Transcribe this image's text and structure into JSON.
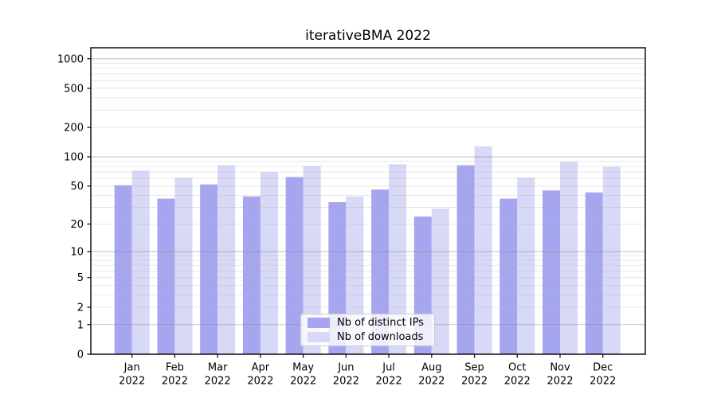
{
  "chart_data": {
    "type": "bar",
    "title": "iterativeBMA 2022",
    "x_axis": {
      "categories": [
        "Jan",
        "Feb",
        "Mar",
        "Apr",
        "May",
        "Jun",
        "Jul",
        "Aug",
        "Sep",
        "Oct",
        "Nov",
        "Dec"
      ],
      "year_label": "2022"
    },
    "y_axis": {
      "scale": "log10(1+x)",
      "ticks": [
        0,
        1,
        2,
        5,
        10,
        20,
        50,
        100,
        200,
        500,
        1000
      ],
      "range": [
        0,
        1300
      ],
      "minor_grid_multiples": [
        2,
        3,
        4,
        5,
        6,
        7,
        8,
        9
      ]
    },
    "series": [
      {
        "name": "Nb of distinct IPs",
        "color": "#a6a6f0",
        "values": [
          51,
          37,
          52,
          39,
          62,
          34,
          46,
          24,
          82,
          37,
          45,
          43
        ]
      },
      {
        "name": "Nb of downloads",
        "color": "#d8d8f7",
        "values": [
          72,
          61,
          82,
          70,
          80,
          39,
          84,
          29,
          128,
          61,
          89,
          79
        ]
      }
    ],
    "legend_position": "lower center",
    "grid": true
  },
  "colors": {
    "background": "#ffffff",
    "axis": "#000000",
    "grid_major": "#808080",
    "grid_minor": "#b0b0b0"
  }
}
